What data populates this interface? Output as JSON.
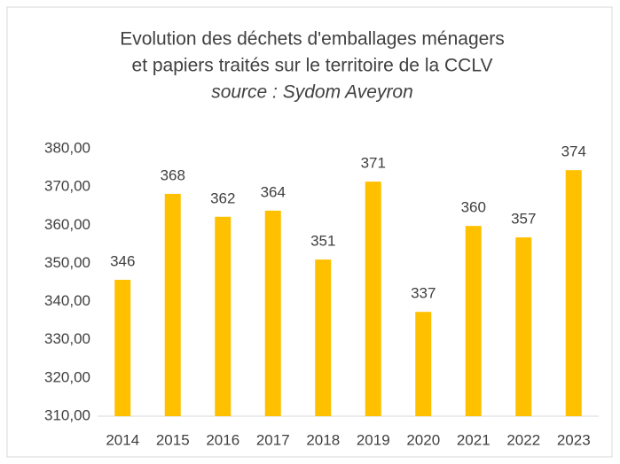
{
  "chart_data": {
    "type": "bar",
    "title": [
      "Evolution des déchets d'emballages ménagers",
      "et papiers traités sur le territoire de la CCLV"
    ],
    "subtitle": "source : Sydom Aveyron",
    "categories": [
      "2014",
      "2015",
      "2016",
      "2017",
      "2018",
      "2019",
      "2020",
      "2021",
      "2022",
      "2023"
    ],
    "values": [
      345.7,
      368.2,
      362.2,
      363.8,
      351.0,
      371.4,
      337.3,
      359.8,
      356.8,
      374.4
    ],
    "value_labels": [
      "346",
      "368",
      "362",
      "364",
      "351",
      "371",
      "337",
      "360",
      "357",
      "374"
    ],
    "color": "#ffc000",
    "ylim": [
      310,
      380
    ],
    "yticks": [
      {
        "value": 310,
        "label": "310,00"
      },
      {
        "value": 320,
        "label": "320,00"
      },
      {
        "value": 330,
        "label": "330,00"
      },
      {
        "value": 340,
        "label": "340,00"
      },
      {
        "value": 350,
        "label": "350,00"
      },
      {
        "value": 360,
        "label": "360,00"
      },
      {
        "value": 370,
        "label": "370,00"
      },
      {
        "value": 380,
        "label": "380,00"
      }
    ],
    "grid": false
  }
}
